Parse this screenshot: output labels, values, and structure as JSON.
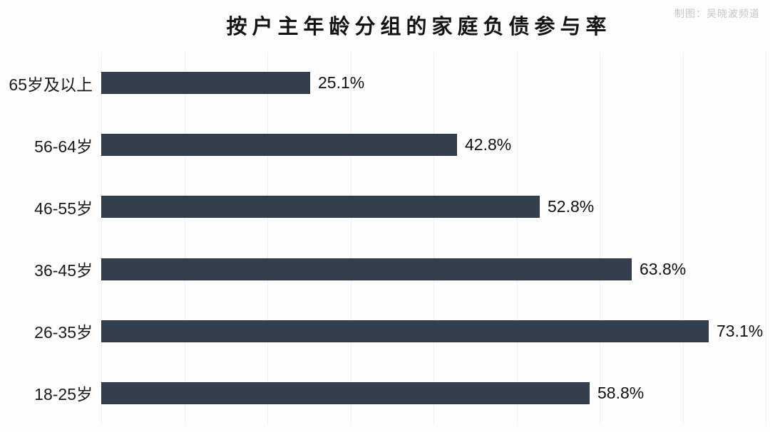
{
  "title": "按户主年龄分组的家庭负债参与率",
  "credit": "制图：吴晓波频道",
  "colors": {
    "bar": "#343f4d",
    "bar_border": "#2a3340",
    "gridline": "#eef0f3",
    "background": "#fdfdfd",
    "title_text": "#141414",
    "label_text": "#1a1a1a",
    "credit_text": "#c3c7cd"
  },
  "chart_data": {
    "type": "bar",
    "orientation": "horizontal",
    "title": "按户主年龄分组的家庭负债参与率",
    "xlabel": "",
    "ylabel": "",
    "categories": [
      "65岁及以上",
      "56-64岁",
      "46-55岁",
      "36-45岁",
      "26-35岁",
      "18-25岁"
    ],
    "values": [
      25.1,
      42.8,
      52.8,
      63.8,
      73.1,
      58.8
    ],
    "value_labels": [
      "25.1%",
      "42.8%",
      "52.8%",
      "63.8%",
      "73.1%",
      "58.8%"
    ],
    "xlim": [
      0,
      80
    ],
    "grid": "vertical gridlines every 10%, no tick labels",
    "legend": "none"
  }
}
